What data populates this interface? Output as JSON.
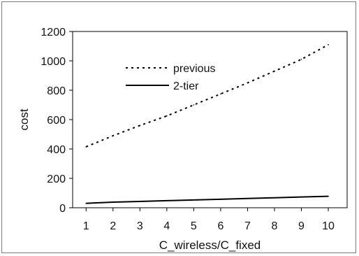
{
  "chart_data": {
    "type": "line",
    "title": "",
    "xlabel": "C_wireless/C_fixed",
    "ylabel": "cost",
    "x": [
      1,
      2,
      3,
      4,
      5,
      6,
      7,
      8,
      9,
      10
    ],
    "x_ticks": [
      "1",
      "2",
      "3",
      "4",
      "5",
      "6",
      "7",
      "8",
      "9",
      "10"
    ],
    "y_ticks": [
      "0",
      "200",
      "400",
      "600",
      "800",
      "1000",
      "1200"
    ],
    "xlim": [
      0.5,
      10.7
    ],
    "ylim": [
      0,
      1200
    ],
    "grid": false,
    "legend_position": "upper-center",
    "series": [
      {
        "name": "previous",
        "style": "dotted",
        "color": "#000000",
        "values": [
          415,
          490,
          560,
          625,
          700,
          775,
          850,
          930,
          1010,
          1110
        ]
      },
      {
        "name": "2-tier",
        "style": "solid",
        "color": "#000000",
        "values": [
          30,
          38,
          43,
          48,
          53,
          58,
          63,
          68,
          73,
          78
        ]
      }
    ]
  }
}
